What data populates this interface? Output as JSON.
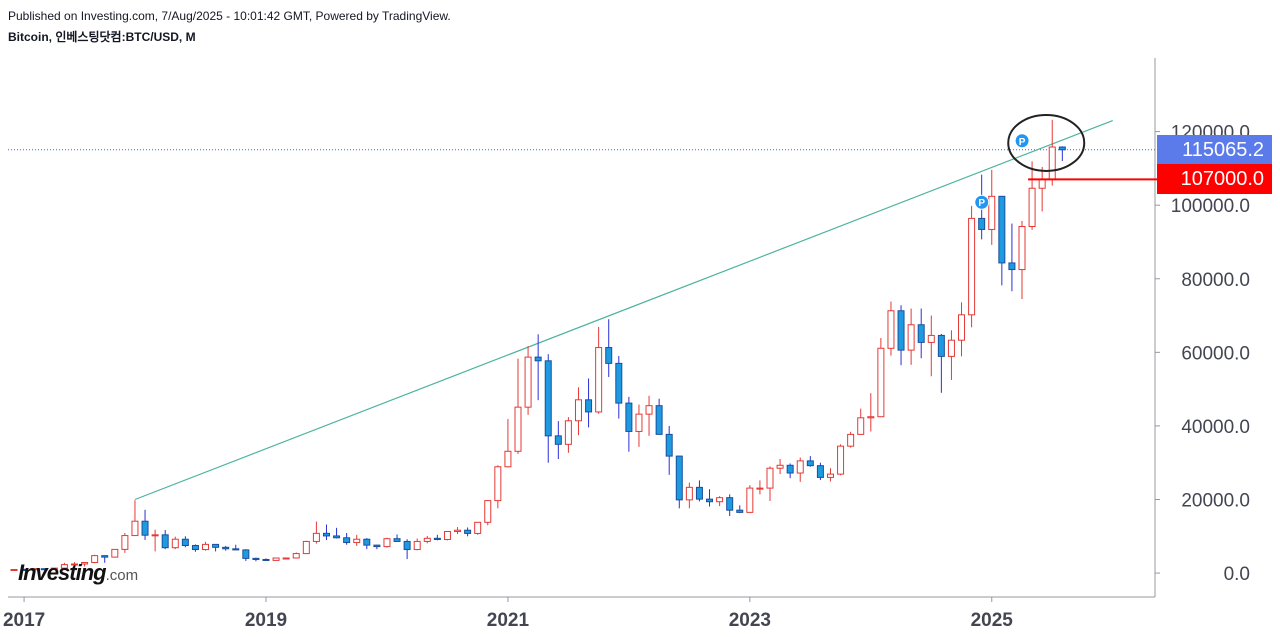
{
  "header": {
    "published": "Published on Investing.com, 7/Aug/2025 - 10:01:42 GMT, Powered by TradingView.",
    "symbol": "Bitcoin, 인베스팅닷컴:BTC/USD, M"
  },
  "logo": {
    "brand": "Investing",
    "tld": ".com"
  },
  "price_tags": {
    "current": {
      "label": "115065.2",
      "color": "#5b7bea"
    },
    "level": {
      "label": "107000.0",
      "color": "#ff0000"
    }
  },
  "colors": {
    "up": "#e53935",
    "down": "#1e9be0",
    "trendline": "#4db39e",
    "price_line": "#3f62e6",
    "axis": "#9598a1"
  },
  "chart_data": {
    "type": "candlestick",
    "interval": "monthly",
    "start": "2016-12",
    "y_ticks": [
      0,
      20000,
      40000,
      60000,
      80000,
      100000,
      120000
    ],
    "y_tick_labels": [
      "0.0",
      "20000.0",
      "40000.0",
      "60000.0",
      "80000.0",
      "100000.0",
      "120000.0"
    ],
    "x_ticks": [
      "2017",
      "2019",
      "2021",
      "2023",
      "2025"
    ],
    "ylim": [
      -6500,
      140000
    ],
    "current_price": 115065.2,
    "horizontal_level": 107000,
    "trendline": {
      "from": {
        "date": "2017-12",
        "price": 20000
      },
      "to": {
        "date": "2026-01",
        "price": 123000
      }
    },
    "circle_annotation": {
      "date": "2025-07",
      "price": 118000
    },
    "markers": [
      {
        "date": "2025-01",
        "price": 100800,
        "label": "P"
      },
      {
        "date": "2025-05",
        "price": 117500,
        "label": "P"
      }
    ],
    "candles": [
      [
        960,
        1000,
        750,
        970
      ],
      [
        970,
        1200,
        750,
        960
      ],
      [
        960,
        1200,
        930,
        1190
      ],
      [
        1190,
        1300,
        1100,
        1080
      ],
      [
        1080,
        1440,
        1060,
        1350
      ],
      [
        1350,
        2800,
        1350,
        2300
      ],
      [
        2300,
        2980,
        2100,
        2480
      ],
      [
        2480,
        2920,
        1800,
        2870
      ],
      [
        2870,
        4980,
        2700,
        4740
      ],
      [
        4740,
        4400,
        2800,
        4340
      ],
      [
        4340,
        6500,
        4200,
        6440
      ],
      [
        6440,
        10900,
        5500,
        10200
      ],
      [
        10200,
        19800,
        10500,
        14100
      ],
      [
        14100,
        17200,
        9000,
        10300
      ],
      [
        10300,
        11800,
        5900,
        10400
      ],
      [
        10400,
        11700,
        6500,
        6900
      ],
      [
        6900,
        9900,
        6500,
        9200
      ],
      [
        9200,
        10000,
        7000,
        7500
      ],
      [
        7500,
        7800,
        5800,
        6400
      ],
      [
        6400,
        8500,
        6100,
        7800
      ],
      [
        7800,
        7800,
        5900,
        7000
      ],
      [
        7000,
        7400,
        6100,
        6600
      ],
      [
        6600,
        7700,
        6300,
        6300
      ],
      [
        6300,
        6500,
        3300,
        4000
      ],
      [
        4000,
        4200,
        3200,
        3700
      ],
      [
        3700,
        4000,
        3400,
        3450
      ],
      [
        3450,
        4200,
        3500,
        4100
      ],
      [
        4100,
        4100,
        3700,
        4100
      ],
      [
        4100,
        5600,
        4100,
        5300
      ],
      [
        5300,
        8800,
        5300,
        8600
      ],
      [
        8600,
        14000,
        8000,
        10800
      ],
      [
        10800,
        13200,
        9000,
        10100
      ],
      [
        10100,
        12300,
        9400,
        9600
      ],
      [
        9600,
        10900,
        7700,
        8300
      ],
      [
        8300,
        10400,
        7400,
        9200
      ],
      [
        9200,
        9500,
        6500,
        7600
      ],
      [
        7600,
        7700,
        6500,
        7200
      ],
      [
        7200,
        9600,
        6900,
        9350
      ],
      [
        9350,
        10500,
        8500,
        8600
      ],
      [
        8600,
        9200,
        3800,
        6400
      ],
      [
        6400,
        9400,
        6200,
        8600
      ],
      [
        8600,
        10100,
        8100,
        9450
      ],
      [
        9450,
        10400,
        8900,
        9130
      ],
      [
        9130,
        11400,
        8900,
        11300
      ],
      [
        11300,
        12500,
        10600,
        11650
      ],
      [
        11650,
        12400,
        10000,
        10780
      ],
      [
        10780,
        13800,
        10400,
        13800
      ],
      [
        13800,
        19800,
        13000,
        19700
      ],
      [
        19700,
        29300,
        17600,
        28900
      ],
      [
        28900,
        41900,
        28700,
        33100
      ],
      [
        33100,
        58300,
        32400,
        45100
      ],
      [
        45100,
        61700,
        43000,
        58700
      ],
      [
        58700,
        64900,
        47000,
        57700
      ],
      [
        57700,
        59500,
        30000,
        37300
      ],
      [
        37300,
        41300,
        31000,
        35000
      ],
      [
        35000,
        42400,
        32700,
        41400
      ],
      [
        41400,
        50500,
        37500,
        47100
      ],
      [
        47100,
        52900,
        39600,
        43800
      ],
      [
        43800,
        66900,
        43300,
        61300
      ],
      [
        61300,
        69000,
        53300,
        57000
      ],
      [
        57000,
        59000,
        42000,
        46200
      ],
      [
        46200,
        47900,
        33000,
        38500
      ],
      [
        38500,
        45800,
        34300,
        43200
      ],
      [
        43200,
        48200,
        37300,
        45500
      ],
      [
        45500,
        47400,
        37700,
        37700
      ],
      [
        37700,
        40000,
        26700,
        31800
      ],
      [
        31800,
        31900,
        17600,
        19900
      ],
      [
        19900,
        24600,
        17600,
        23300
      ],
      [
        23300,
        25200,
        19500,
        20100
      ],
      [
        20100,
        22800,
        18100,
        19400
      ],
      [
        19400,
        20900,
        18200,
        20500
      ],
      [
        20500,
        21400,
        15500,
        17100
      ],
      [
        17100,
        18400,
        16300,
        16500
      ],
      [
        16500,
        23900,
        16500,
        23100
      ],
      [
        23100,
        25200,
        21400,
        23100
      ],
      [
        23100,
        29000,
        19600,
        28500
      ],
      [
        28500,
        31000,
        26900,
        29300
      ],
      [
        29300,
        29800,
        25800,
        27200
      ],
      [
        27200,
        31400,
        24800,
        30500
      ],
      [
        30500,
        31800,
        28900,
        29200
      ],
      [
        29200,
        30000,
        25300,
        26000
      ],
      [
        26000,
        28500,
        24900,
        26900
      ],
      [
        26900,
        35000,
        26600,
        34500
      ],
      [
        34500,
        38400,
        34100,
        37700
      ],
      [
        37700,
        44700,
        37600,
        42200
      ],
      [
        42200,
        48900,
        38500,
        42500
      ],
      [
        42500,
        63900,
        42800,
        61100
      ],
      [
        61100,
        73800,
        59100,
        71300
      ],
      [
        71300,
        72800,
        56500,
        60600
      ],
      [
        60600,
        71900,
        56600,
        67500
      ],
      [
        67500,
        71900,
        58400,
        62700
      ],
      [
        62700,
        70000,
        53500,
        64600
      ],
      [
        64600,
        65000,
        49000,
        58900
      ],
      [
        58900,
        66000,
        52500,
        63300
      ],
      [
        63300,
        73600,
        58900,
        70200
      ],
      [
        70200,
        99800,
        66800,
        96400
      ],
      [
        96400,
        108300,
        90700,
        93400
      ],
      [
        93400,
        109600,
        89200,
        102400
      ],
      [
        102400,
        102500,
        78200,
        84300
      ],
      [
        84300,
        95000,
        76600,
        82500
      ],
      [
        82500,
        95700,
        74500,
        94200
      ],
      [
        94200,
        111900,
        93300,
        104600
      ],
      [
        104600,
        110400,
        98300,
        107100
      ],
      [
        107100,
        123200,
        105300,
        115800
      ],
      [
        115800,
        116000,
        112000,
        115065
      ]
    ]
  }
}
